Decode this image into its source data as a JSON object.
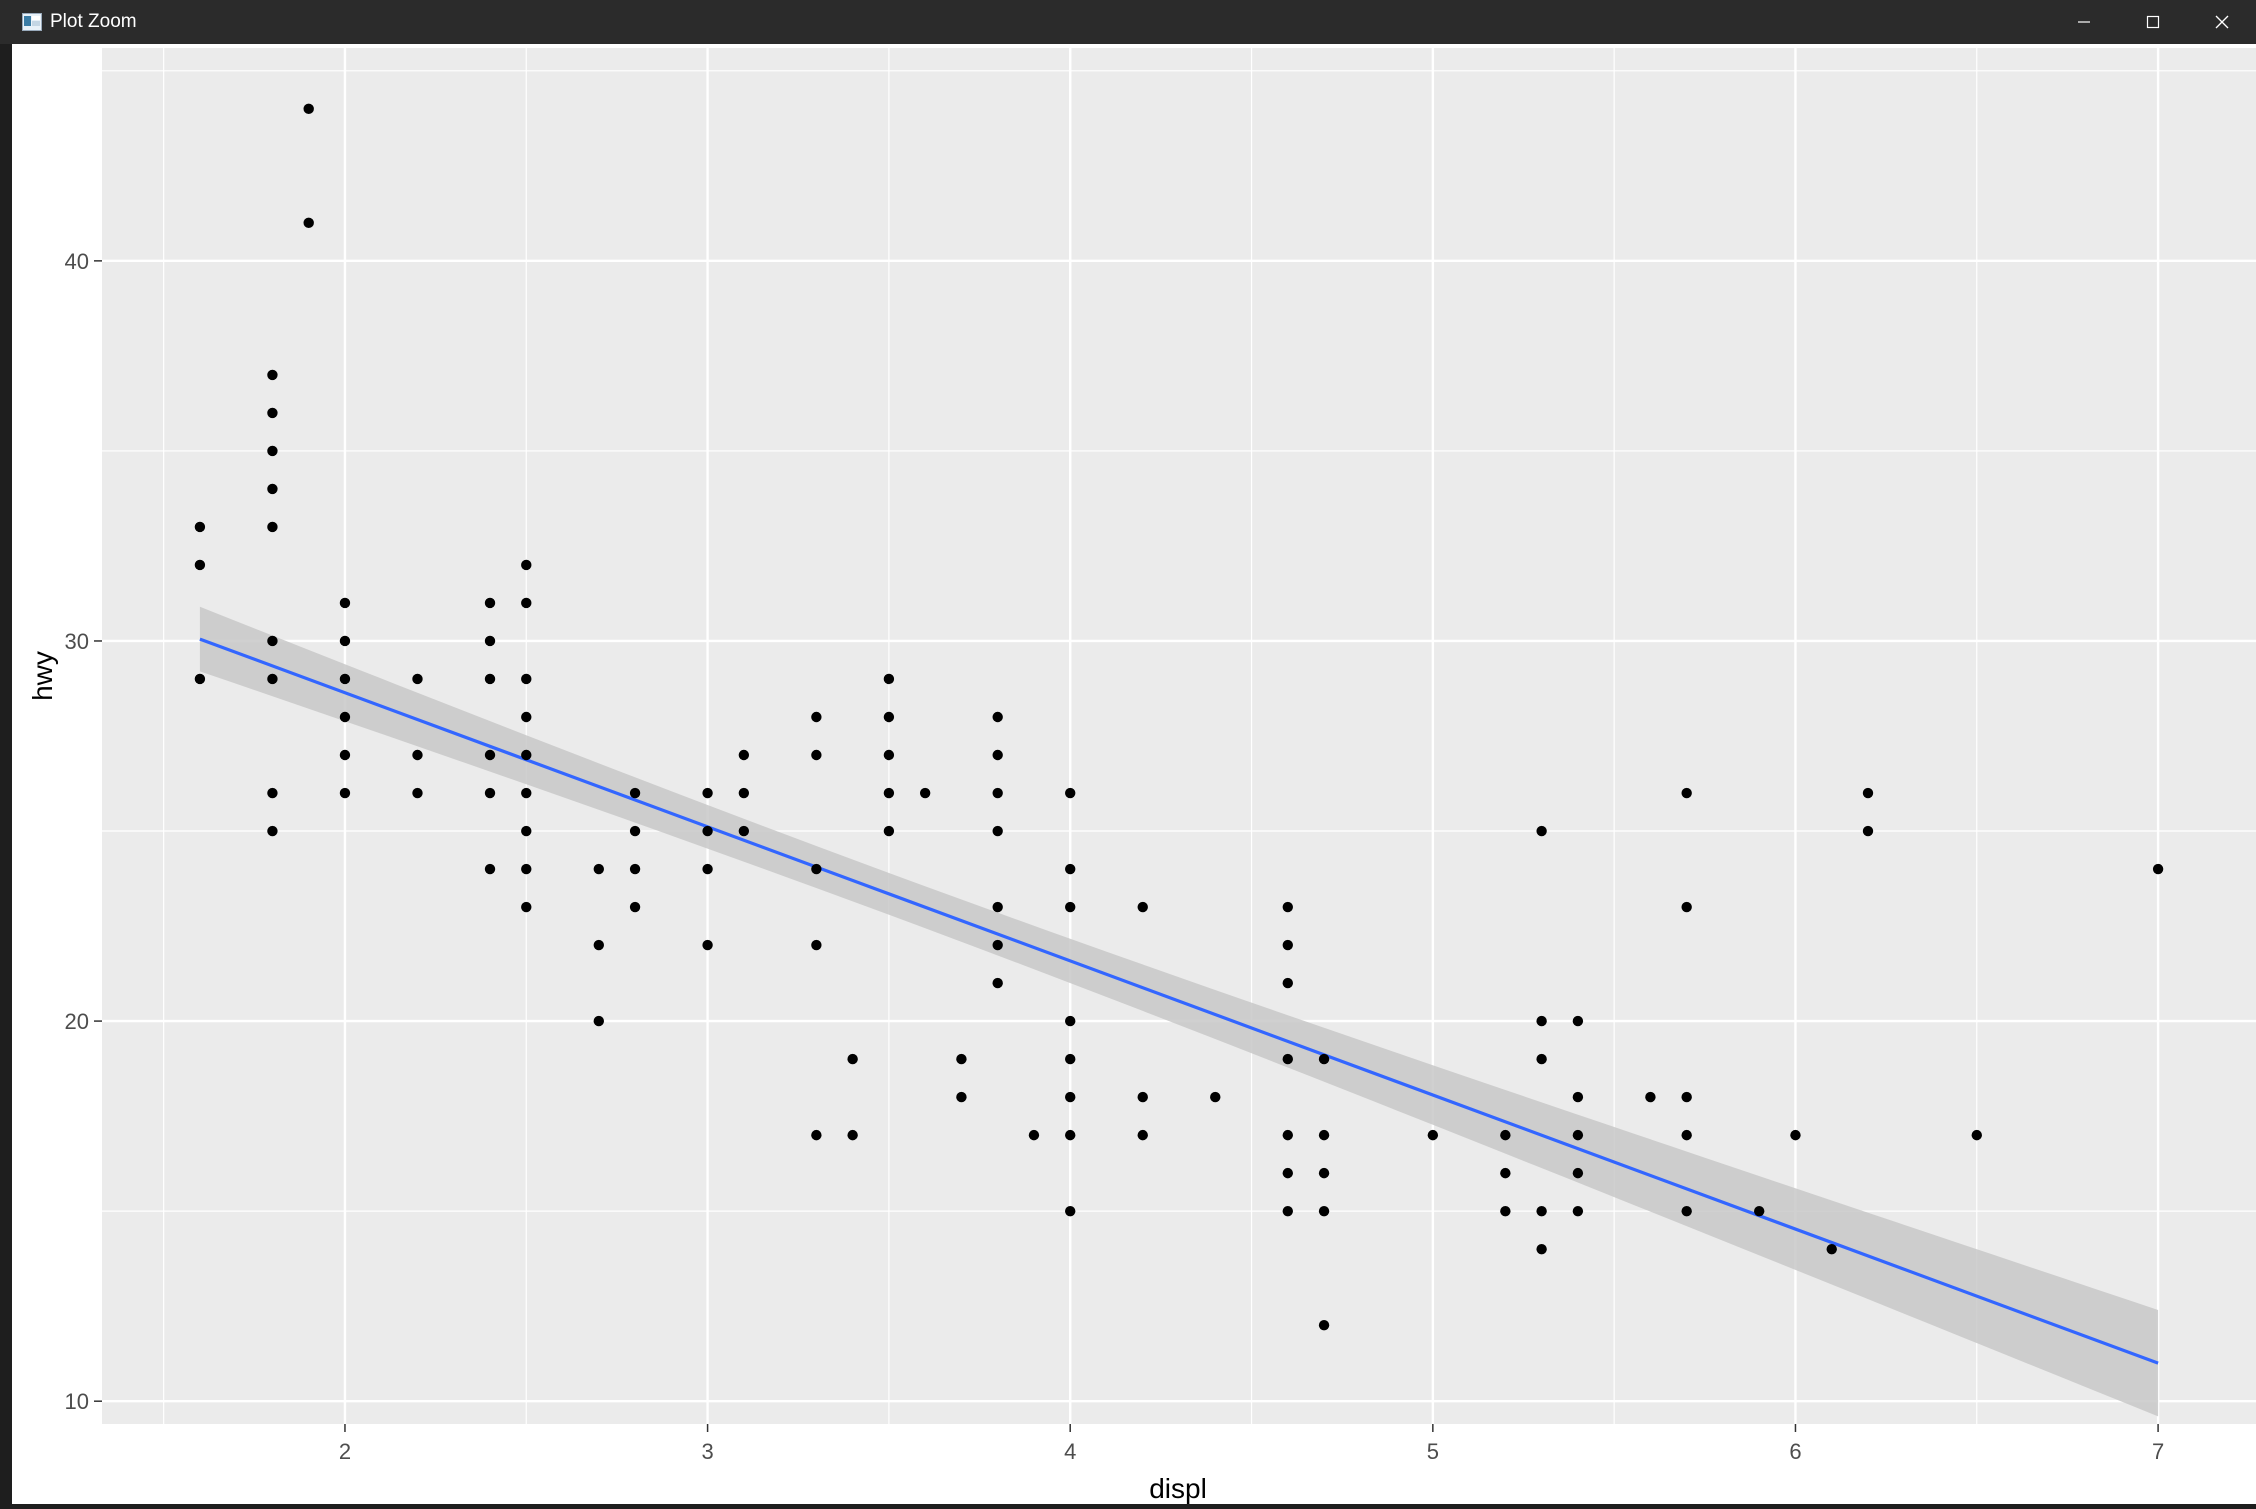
{
  "window": {
    "title": "Plot Zoom",
    "icons": {
      "app": "plot-window-icon",
      "minimize": "minimize-icon",
      "maximize": "maximize-icon",
      "close": "close-icon"
    }
  },
  "colors": {
    "panel_bg": "#EBEBEB",
    "grid": "#FFFFFF",
    "points": "#000000",
    "smooth_line": "#3366FF",
    "confidence_band": "#C8C8C8",
    "axis_text": "#4D4D4D"
  },
  "chart_data": {
    "type": "scatter",
    "title": "",
    "xlabel": "displ",
    "ylabel": "hwy",
    "xlim": [
      1.33,
      7.27
    ],
    "ylim": [
      9.4,
      45.6
    ],
    "x_ticks": [
      2,
      3,
      4,
      5,
      6,
      7
    ],
    "y_ticks": [
      10,
      20,
      30,
      40
    ],
    "x_minor_ticks": [
      1.5,
      2.5,
      3.5,
      4.5,
      5.5,
      6.5
    ],
    "y_minor_ticks": [
      15,
      25,
      35,
      45
    ],
    "grid": true,
    "legend": "none",
    "points": [
      [
        1.6,
        33
      ],
      [
        1.6,
        32
      ],
      [
        1.6,
        29
      ],
      [
        1.8,
        37
      ],
      [
        1.8,
        36
      ],
      [
        1.8,
        35
      ],
      [
        1.8,
        34
      ],
      [
        1.8,
        33
      ],
      [
        1.8,
        30
      ],
      [
        1.8,
        29
      ],
      [
        1.8,
        26
      ],
      [
        1.8,
        25
      ],
      [
        1.9,
        44
      ],
      [
        1.9,
        41
      ],
      [
        2.0,
        31
      ],
      [
        2.0,
        30
      ],
      [
        2.0,
        29
      ],
      [
        2.0,
        28
      ],
      [
        2.0,
        27
      ],
      [
        2.0,
        26
      ],
      [
        2.2,
        29
      ],
      [
        2.2,
        27
      ],
      [
        2.2,
        26
      ],
      [
        2.4,
        31
      ],
      [
        2.4,
        30
      ],
      [
        2.4,
        29
      ],
      [
        2.4,
        27
      ],
      [
        2.4,
        26
      ],
      [
        2.4,
        24
      ],
      [
        2.5,
        32
      ],
      [
        2.5,
        31
      ],
      [
        2.5,
        29
      ],
      [
        2.5,
        28
      ],
      [
        2.5,
        27
      ],
      [
        2.5,
        26
      ],
      [
        2.5,
        25
      ],
      [
        2.5,
        24
      ],
      [
        2.5,
        23
      ],
      [
        2.7,
        24
      ],
      [
        2.7,
        22
      ],
      [
        2.7,
        20
      ],
      [
        2.8,
        26
      ],
      [
        2.8,
        25
      ],
      [
        2.8,
        24
      ],
      [
        2.8,
        23
      ],
      [
        3.0,
        26
      ],
      [
        3.0,
        25
      ],
      [
        3.0,
        24
      ],
      [
        3.0,
        22
      ],
      [
        3.1,
        27
      ],
      [
        3.1,
        26
      ],
      [
        3.1,
        25
      ],
      [
        3.3,
        28
      ],
      [
        3.3,
        27
      ],
      [
        3.3,
        24
      ],
      [
        3.3,
        22
      ],
      [
        3.3,
        17
      ],
      [
        3.4,
        19
      ],
      [
        3.4,
        17
      ],
      [
        3.5,
        29
      ],
      [
        3.5,
        28
      ],
      [
        3.5,
        27
      ],
      [
        3.5,
        26
      ],
      [
        3.5,
        25
      ],
      [
        3.6,
        26
      ],
      [
        3.7,
        19
      ],
      [
        3.7,
        18
      ],
      [
        3.8,
        28
      ],
      [
        3.8,
        27
      ],
      [
        3.8,
        26
      ],
      [
        3.8,
        25
      ],
      [
        3.8,
        23
      ],
      [
        3.8,
        22
      ],
      [
        3.8,
        21
      ],
      [
        3.9,
        17
      ],
      [
        4.0,
        26
      ],
      [
        4.0,
        24
      ],
      [
        4.0,
        23
      ],
      [
        4.0,
        20
      ],
      [
        4.0,
        19
      ],
      [
        4.0,
        18
      ],
      [
        4.0,
        17
      ],
      [
        4.0,
        15
      ],
      [
        4.2,
        23
      ],
      [
        4.2,
        18
      ],
      [
        4.2,
        17
      ],
      [
        4.4,
        18
      ],
      [
        4.6,
        23
      ],
      [
        4.6,
        22
      ],
      [
        4.6,
        21
      ],
      [
        4.6,
        19
      ],
      [
        4.6,
        17
      ],
      [
        4.6,
        16
      ],
      [
        4.6,
        15
      ],
      [
        4.7,
        19
      ],
      [
        4.7,
        17
      ],
      [
        4.7,
        16
      ],
      [
        4.7,
        15
      ],
      [
        4.7,
        12
      ],
      [
        5.0,
        17
      ],
      [
        5.2,
        17
      ],
      [
        5.2,
        16
      ],
      [
        5.2,
        15
      ],
      [
        5.3,
        25
      ],
      [
        5.3,
        20
      ],
      [
        5.3,
        19
      ],
      [
        5.3,
        15
      ],
      [
        5.3,
        14
      ],
      [
        5.4,
        20
      ],
      [
        5.4,
        18
      ],
      [
        5.4,
        17
      ],
      [
        5.4,
        16
      ],
      [
        5.4,
        15
      ],
      [
        5.6,
        18
      ],
      [
        5.7,
        26
      ],
      [
        5.7,
        23
      ],
      [
        5.7,
        18
      ],
      [
        5.7,
        17
      ],
      [
        5.7,
        15
      ],
      [
        5.9,
        15
      ],
      [
        6.0,
        17
      ],
      [
        6.1,
        14
      ],
      [
        6.2,
        26
      ],
      [
        6.2,
        25
      ],
      [
        6.5,
        17
      ],
      [
        7.0,
        24
      ]
    ],
    "smooth": {
      "method": "linear",
      "x": [
        1.6,
        7.0
      ],
      "y": [
        30.05,
        11.0
      ],
      "ci_upper": [
        30.9,
        12.4
      ],
      "ci_lower": [
        29.2,
        9.6
      ],
      "ci_center_halfwidth": 0.55,
      "x_center": 3.47
    }
  }
}
